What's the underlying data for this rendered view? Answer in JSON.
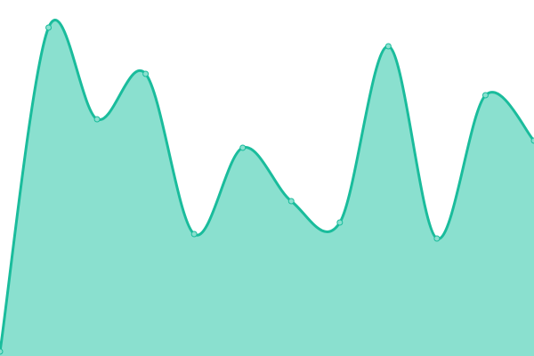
{
  "chart_data": {
    "type": "area",
    "title": "",
    "xlabel": "",
    "ylabel": "",
    "x": [
      0,
      1,
      2,
      3,
      4,
      5,
      6,
      7,
      8,
      9,
      10,
      11
    ],
    "values": [
      5,
      369,
      266,
      317,
      137,
      234,
      174,
      150,
      348,
      132,
      293,
      242
    ],
    "ylim": [
      0,
      400
    ],
    "grid": false,
    "legend": "none",
    "colors": {
      "line": "#1abc9c",
      "fill": "#8ae0cf",
      "marker_fill": "#8ae0cf"
    }
  }
}
